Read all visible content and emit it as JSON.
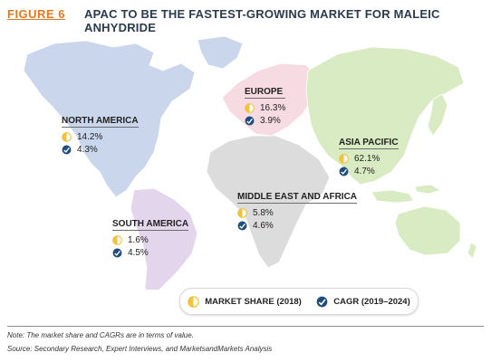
{
  "header": {
    "figure_label": "FIGURE 6",
    "title": "APAC TO BE THE FASTEST-GROWING MARKET FOR MALEIC ANHYDRIDE"
  },
  "colors": {
    "north_america": "#c9d6ec",
    "south_america": "#e3d5ec",
    "europe": "#f6dbe2",
    "middle_east_africa": "#dcdcdc",
    "asia_pacific": "#d9ebc2",
    "oceania": "#d9ebc2",
    "market_share_icon": "#f2c23e",
    "cagr_icon": "#1e4c7d",
    "figure_label": "#e8781f",
    "title": "#2a3b4f"
  },
  "regions": {
    "north_america": {
      "name": "NORTH AMERICA",
      "market_share": "14.2%",
      "cagr": "4.3%"
    },
    "europe": {
      "name": "EUROPE",
      "market_share": "16.3%",
      "cagr": "3.9%"
    },
    "asia_pacific": {
      "name": "ASIA PACIFIC",
      "market_share": "62.1%",
      "cagr": "4.7%"
    },
    "middle_east_africa": {
      "name": "MIDDLE EAST AND AFRICA",
      "market_share": "5.8%",
      "cagr": "4.6%"
    },
    "south_america": {
      "name": "SOUTH AMERICA",
      "market_share": "1.6%",
      "cagr": "4.5%"
    }
  },
  "legend": {
    "market_share_label": "MARKET SHARE (2018)",
    "market_share_icon": "half-circle-icon",
    "cagr_label": "CAGR (2019–2024)",
    "cagr_icon": "growth-check-icon"
  },
  "footer": {
    "note": "Note: The market share and CAGRs are in terms of value.",
    "source": "Source: Secondary Research, Expert Interviews, and MarketsandMarkets Analysis"
  }
}
